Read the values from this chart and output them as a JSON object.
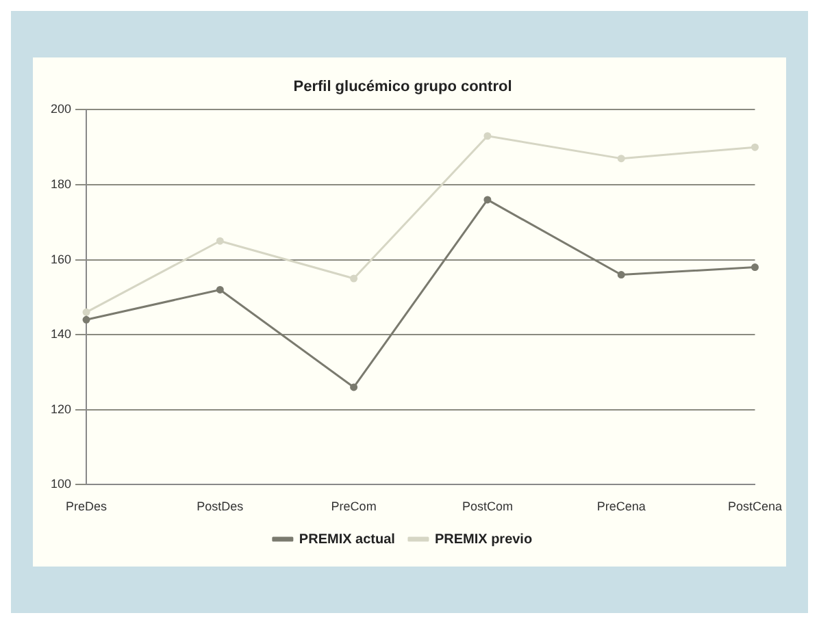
{
  "chart_data": {
    "type": "line",
    "title": "Perfil glucémico grupo control",
    "categories": [
      "PreDes",
      "PostDes",
      "PreCom",
      "PostCom",
      "PreCena",
      "PostCena"
    ],
    "series": [
      {
        "name": "PREMIX actual",
        "color": "#7a7a6e",
        "values": [
          144,
          152,
          126,
          176,
          156,
          158
        ]
      },
      {
        "name": "PREMIX previo",
        "color": "#d6d6c4",
        "values": [
          146,
          165,
          155,
          193,
          187,
          190
        ]
      }
    ],
    "ylim": [
      100,
      200
    ],
    "yticks": [
      100,
      120,
      140,
      160,
      180,
      200
    ],
    "grid": "y",
    "legend": "bottom",
    "marker": "circle"
  }
}
